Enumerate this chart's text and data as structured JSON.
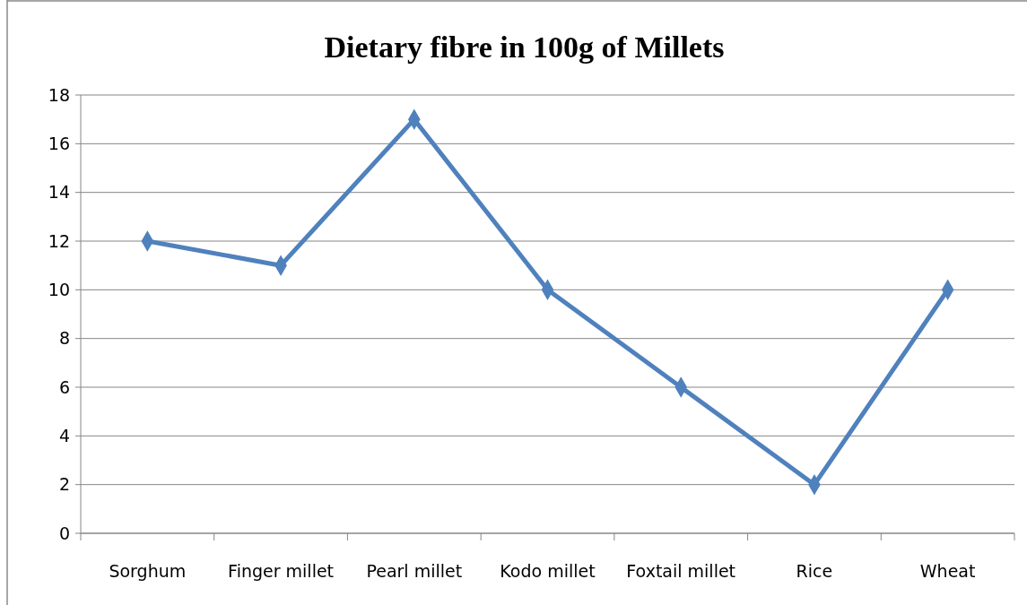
{
  "chart_data": {
    "type": "line",
    "title": "Dietary fibre in 100g of Millets",
    "categories": [
      "Sorghum",
      "Finger millet",
      "Pearl millet",
      "Kodo millet",
      "Foxtail millet",
      "Rice",
      "Wheat"
    ],
    "series": [
      {
        "color": "#4f81bd",
        "values": [
          12,
          11,
          17,
          10,
          6,
          2,
          10
        ]
      }
    ],
    "ylim": [
      0,
      18
    ],
    "yticks": [
      0,
      2,
      4,
      6,
      8,
      10,
      12,
      14,
      16,
      18
    ],
    "grid": "y",
    "marker": "diamond",
    "line_style": "solid"
  }
}
